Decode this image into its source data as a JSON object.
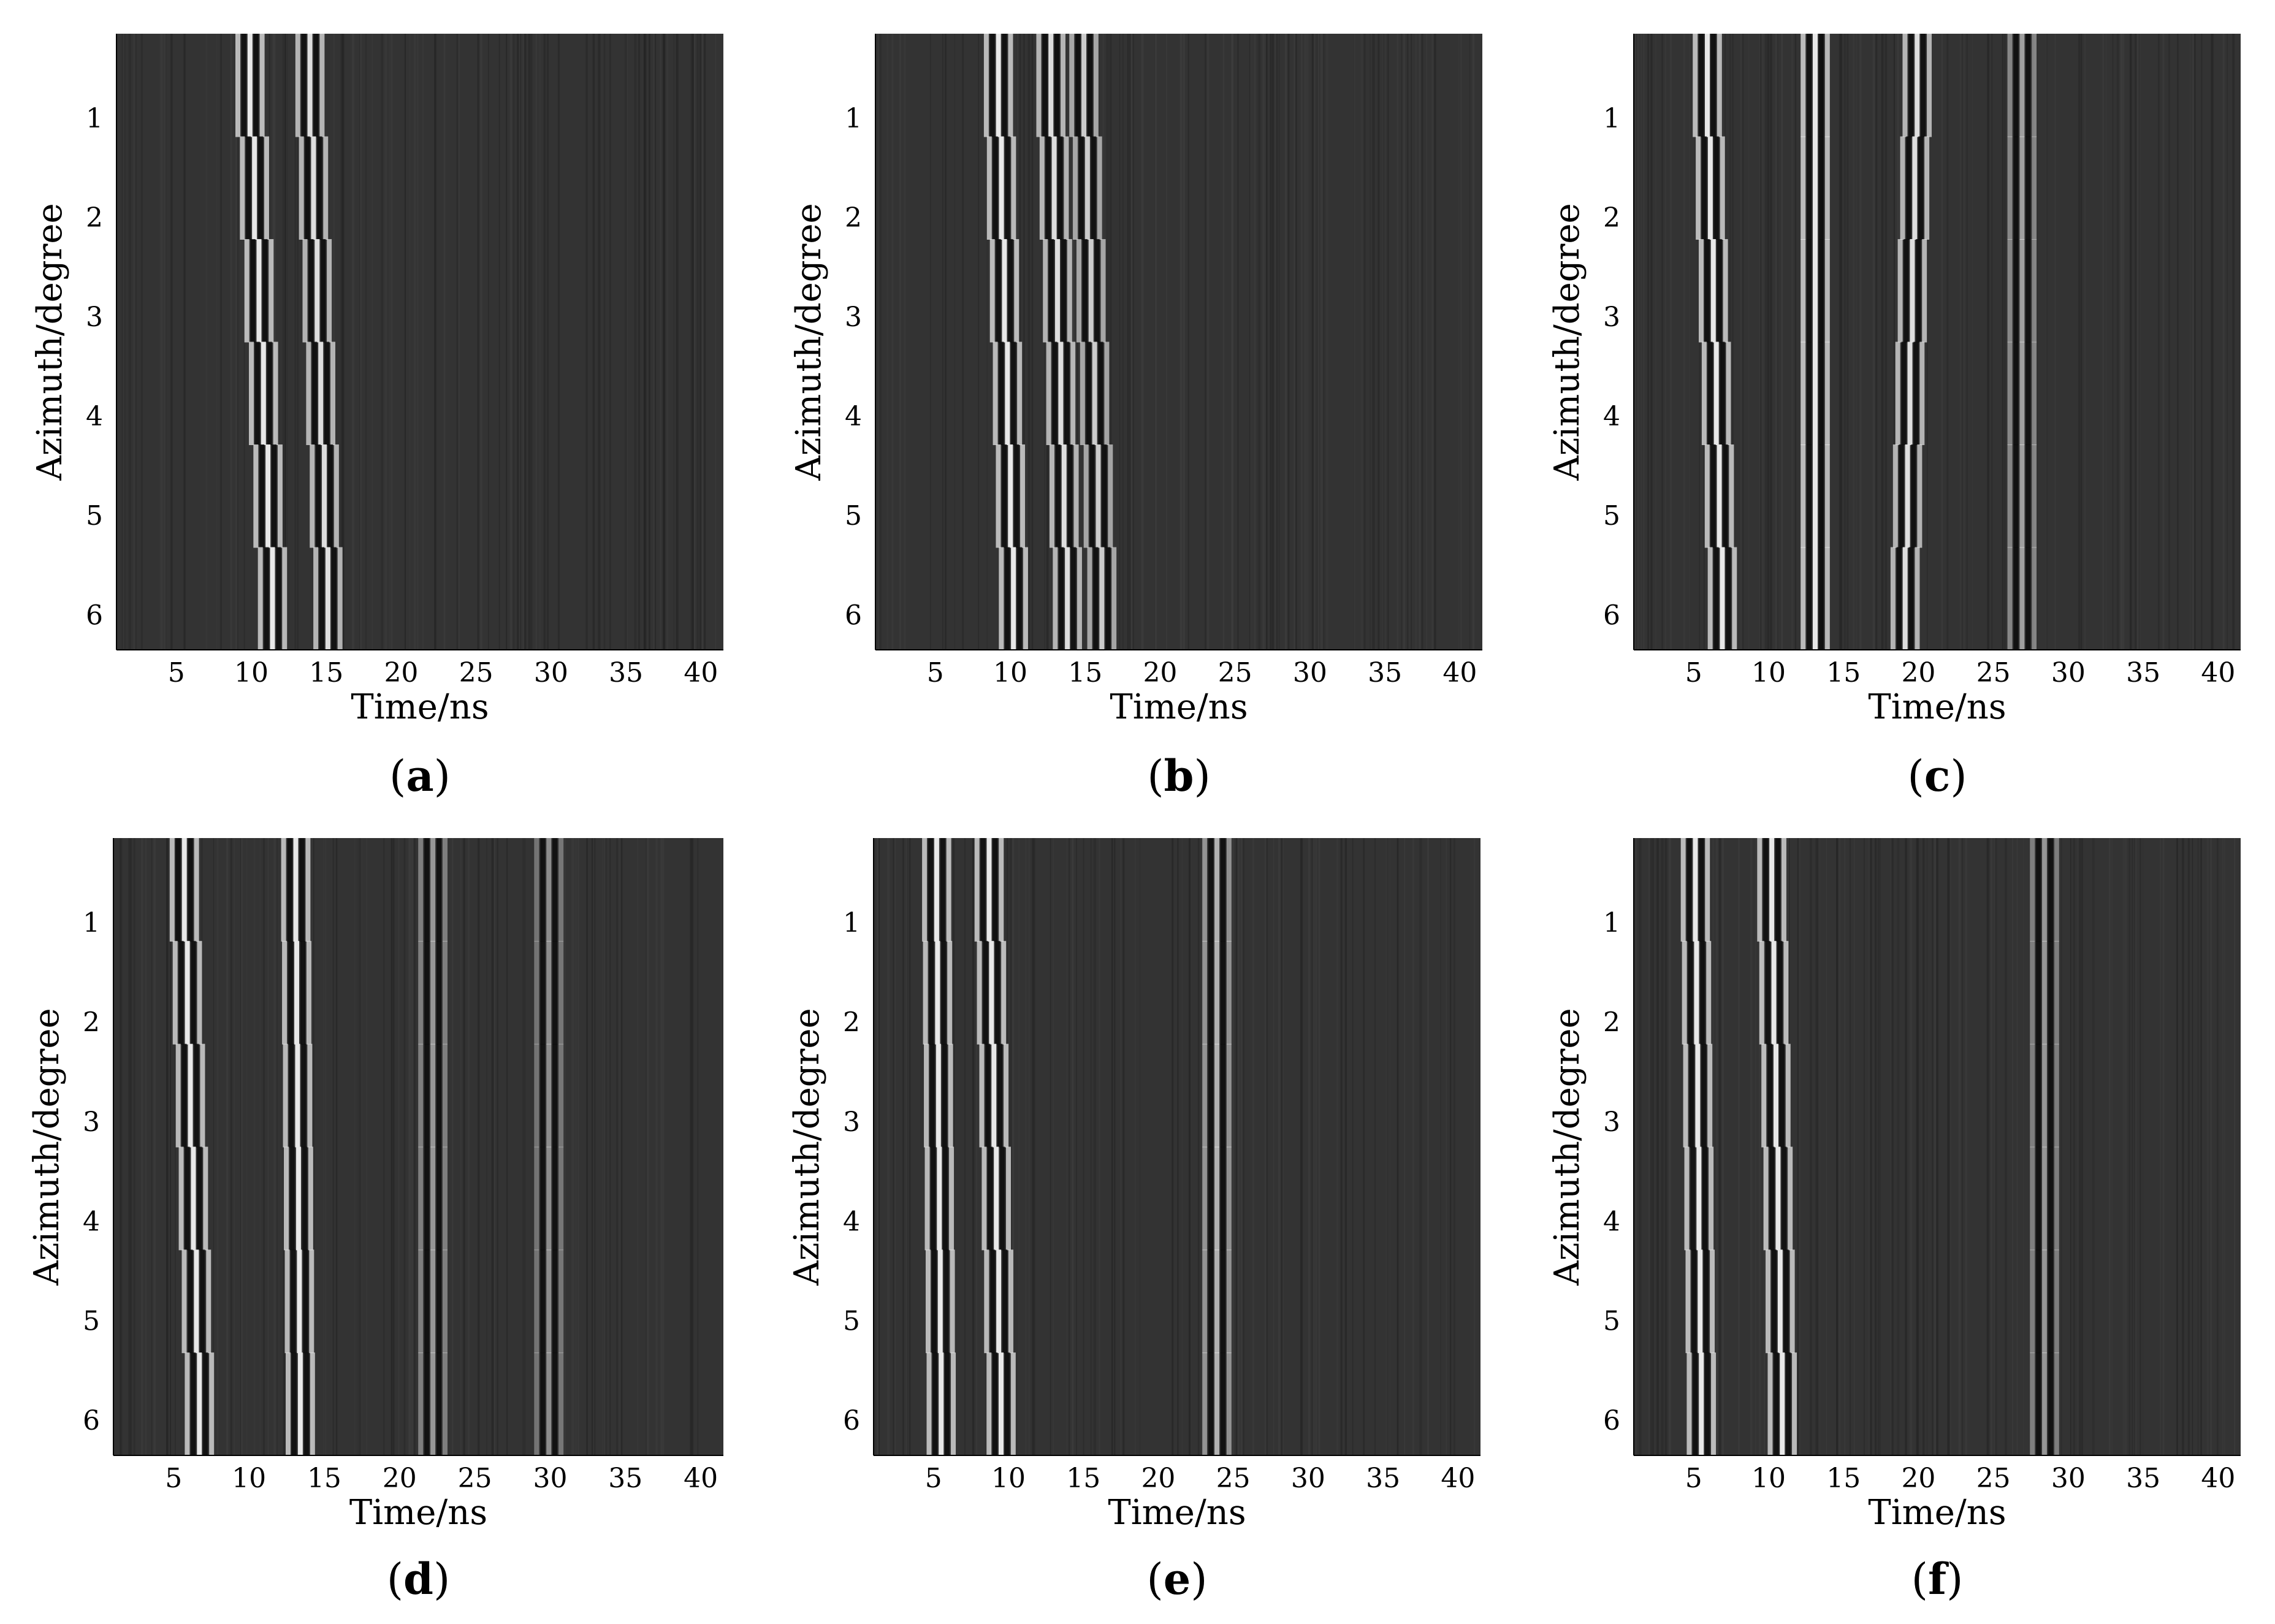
{
  "figure": {
    "colors": {
      "background": "#333333",
      "bright": "#e8e8e8",
      "dark": "#0d0d0d",
      "ticks": "#000000"
    }
  },
  "chart_data": [
    {
      "type": "heatmap",
      "panel": "a",
      "caption_open": "(",
      "caption_letter": "a",
      "caption_close": ")",
      "xlabel": "Time/ns",
      "ylabel": "Azimuth/degree",
      "x_ticks": [
        5,
        10,
        15,
        20,
        25,
        30,
        35,
        40
      ],
      "y_ticks": [
        1,
        2,
        3,
        4,
        5,
        6
      ],
      "xlim": [
        1,
        41.5
      ],
      "ylim": [
        0.15,
        6.35
      ],
      "grid": false,
      "reflections": [
        {
          "time_start": 10.0,
          "time_end": 11.5,
          "strength": 1.0
        },
        {
          "time_start": 14.0,
          "time_end": 15.2,
          "strength": 0.95
        }
      ]
    },
    {
      "type": "heatmap",
      "panel": "b",
      "caption_open": "(",
      "caption_letter": "b",
      "caption_close": ")",
      "xlabel": "Time/ns",
      "ylabel": "Azimuth/degree",
      "x_ticks": [
        5,
        10,
        15,
        20,
        25,
        30,
        35,
        40
      ],
      "y_ticks": [
        1,
        2,
        3,
        4,
        5,
        6
      ],
      "xlim": [
        1,
        41.5
      ],
      "ylim": [
        0.15,
        6.35
      ],
      "grid": false,
      "reflections": [
        {
          "time_start": 9.3,
          "time_end": 10.3,
          "strength": 1.0
        },
        {
          "time_start": 12.8,
          "time_end": 13.9,
          "strength": 0.95
        },
        {
          "time_start": 15.0,
          "time_end": 16.2,
          "strength": 0.85
        }
      ]
    },
    {
      "type": "heatmap",
      "panel": "c",
      "caption_open": "(",
      "caption_letter": "c",
      "caption_close": ")",
      "xlabel": "Time/ns",
      "ylabel": "Azimuth/degree",
      "x_ticks": [
        5,
        10,
        15,
        20,
        25,
        30,
        35,
        40
      ],
      "y_ticks": [
        1,
        2,
        3,
        4,
        5,
        6
      ],
      "xlim": [
        1,
        41.5
      ],
      "ylim": [
        0.15,
        6.35
      ],
      "grid": false,
      "reflections": [
        {
          "time_start": 6.0,
          "time_end": 7.0,
          "strength": 1.0
        },
        {
          "time_start": 13.2,
          "time_end": 13.2,
          "strength": 1.0
        },
        {
          "time_start": 20.0,
          "time_end": 19.2,
          "strength": 0.95
        },
        {
          "time_start": 27.0,
          "time_end": 27.0,
          "strength": 0.6
        }
      ]
    },
    {
      "type": "heatmap",
      "panel": "d",
      "caption_open": "(",
      "caption_letter": "d",
      "caption_close": ")",
      "xlabel": "Time/ns",
      "ylabel": "Azimuth/degree",
      "x_ticks": [
        5,
        10,
        15,
        20,
        25,
        30,
        35,
        40
      ],
      "y_ticks": [
        1,
        2,
        3,
        4,
        5,
        6
      ],
      "xlim": [
        1,
        41.5
      ],
      "ylim": [
        0.15,
        6.35
      ],
      "grid": false,
      "reflections": [
        {
          "time_start": 5.8,
          "time_end": 6.8,
          "strength": 1.0
        },
        {
          "time_start": 13.2,
          "time_end": 13.5,
          "strength": 1.0
        },
        {
          "time_start": 22.3,
          "time_end": 22.3,
          "strength": 0.55
        },
        {
          "time_start": 30.0,
          "time_end": 30.0,
          "strength": 0.5
        }
      ]
    },
    {
      "type": "heatmap",
      "panel": "e",
      "caption_open": "(",
      "caption_letter": "e",
      "caption_close": ")",
      "xlabel": "Time/ns",
      "ylabel": "Azimuth/degree",
      "x_ticks": [
        5,
        10,
        15,
        20,
        25,
        30,
        35,
        40
      ],
      "y_ticks": [
        1,
        2,
        3,
        4,
        5,
        6
      ],
      "xlim": [
        1,
        41.5
      ],
      "ylim": [
        0.15,
        6.35
      ],
      "grid": false,
      "reflections": [
        {
          "time_start": 5.3,
          "time_end": 5.6,
          "strength": 1.0
        },
        {
          "time_start": 8.8,
          "time_end": 9.6,
          "strength": 1.0
        },
        {
          "time_start": 24.0,
          "time_end": 24.0,
          "strength": 0.7
        }
      ]
    },
    {
      "type": "heatmap",
      "panel": "f",
      "caption_open": "(",
      "caption_letter": "f",
      "caption_close": ")",
      "xlabel": "Time/ns",
      "ylabel": "Azimuth/degree",
      "x_ticks": [
        5,
        10,
        15,
        20,
        25,
        30,
        35,
        40
      ],
      "y_ticks": [
        1,
        2,
        3,
        4,
        5,
        6
      ],
      "xlim": [
        1,
        41.5
      ],
      "ylim": [
        0.15,
        6.35
      ],
      "grid": false,
      "reflections": [
        {
          "time_start": 5.2,
          "time_end": 5.6,
          "strength": 1.0
        },
        {
          "time_start": 10.3,
          "time_end": 11.0,
          "strength": 1.0
        },
        {
          "time_start": 28.5,
          "time_end": 28.5,
          "strength": 0.55
        }
      ]
    }
  ]
}
